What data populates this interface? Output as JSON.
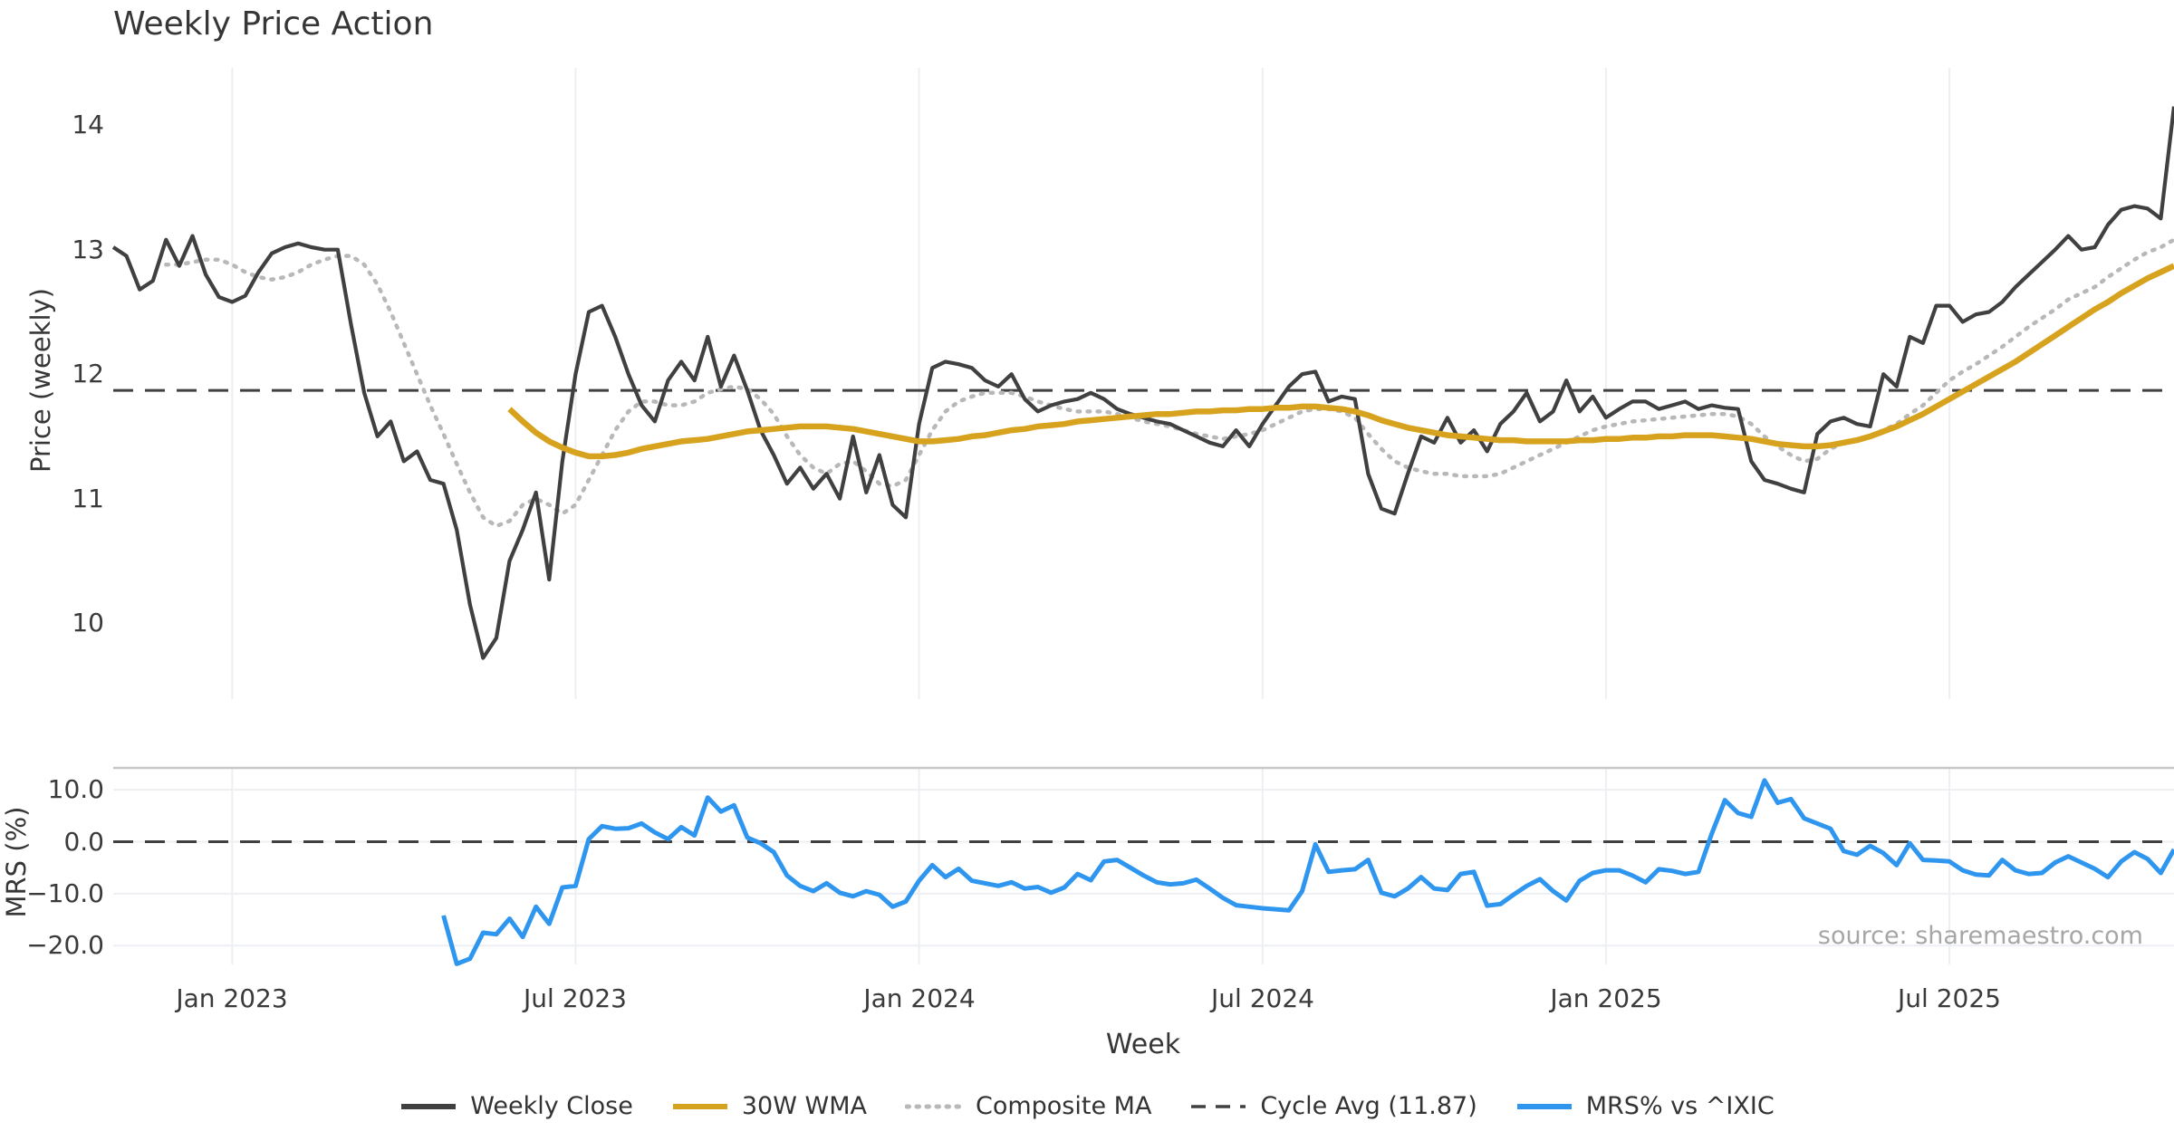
{
  "title": "Weekly Price Action",
  "source_note": "source: sharemaestro.com",
  "axes": {
    "price_axis_title": "Price (weekly)",
    "mrs_axis_title": "MRS (%)",
    "x_axis_title": "Week"
  },
  "colors": {
    "weekly_close": "#404040",
    "wma_30w": "#d7a31e",
    "composite_ma": "#b8b8b8",
    "cycle_avg": "#404040",
    "mrs_blue": "#2f96f0",
    "grid": "#edeff3",
    "text": "#3a3a3a",
    "source_text": "#a6a6a6"
  },
  "legend": {
    "items": [
      {
        "label": "Weekly Close",
        "color": "#404040",
        "style": "solid"
      },
      {
        "label": "30W WMA",
        "color": "#d7a31e",
        "style": "solid"
      },
      {
        "label": "Composite MA",
        "color": "#b8b8b8",
        "style": "dotted"
      },
      {
        "label": "Cycle Avg (11.87)",
        "color": "#404040",
        "style": "dashed"
      },
      {
        "label": "MRS% vs ^IXIC",
        "color": "#2f96f0",
        "style": "solid"
      }
    ]
  },
  "chart_data": [
    {
      "type": "line",
      "panel": "price",
      "title": "Weekly Price Action",
      "xlabel": "Week",
      "ylabel": "Price (weekly)",
      "x_unit": "weekly index, week 0 = early Nov 2022, week 156 = early Nov 2025",
      "n_points": 157,
      "ylim": [
        9.39,
        14.46
      ],
      "grid": "vertical-only",
      "x_ticks": [
        {
          "index": 9,
          "label": "Jan 2023"
        },
        {
          "index": 35,
          "label": "Jul 2023"
        },
        {
          "index": 61,
          "label": "Jan 2024"
        },
        {
          "index": 87,
          "label": "Jul 2024"
        },
        {
          "index": 113,
          "label": "Jan 2025"
        },
        {
          "index": 139,
          "label": "Jul 2025"
        }
      ],
      "y_ticks": [
        {
          "value": 10,
          "label": "10"
        },
        {
          "value": 11,
          "label": "11"
        },
        {
          "value": 12,
          "label": "12"
        },
        {
          "value": 13,
          "label": "13"
        },
        {
          "value": 14,
          "label": "14"
        }
      ],
      "series": [
        {
          "name": "Weekly Close",
          "color": "#404040",
          "style": "solid",
          "start_index": 0,
          "values": [
            13.02,
            12.95,
            12.68,
            12.75,
            13.08,
            12.87,
            13.11,
            12.8,
            12.62,
            12.58,
            12.63,
            12.82,
            12.97,
            13.02,
            13.05,
            13.02,
            13.0,
            13.0,
            12.4,
            11.85,
            11.5,
            11.62,
            11.3,
            11.38,
            11.15,
            11.12,
            10.75,
            10.15,
            9.72,
            9.88,
            10.5,
            10.75,
            11.05,
            10.35,
            11.3,
            12.0,
            12.5,
            12.55,
            12.3,
            12.0,
            11.75,
            11.62,
            11.95,
            12.1,
            11.95,
            12.3,
            11.9,
            12.15,
            11.87,
            11.55,
            11.35,
            11.12,
            11.25,
            11.08,
            11.2,
            11.0,
            11.5,
            11.05,
            11.35,
            10.95,
            10.85,
            11.6,
            12.05,
            12.1,
            12.08,
            12.05,
            11.95,
            11.9,
            12.0,
            11.8,
            11.7,
            11.75,
            11.78,
            11.8,
            11.85,
            11.8,
            11.72,
            11.68,
            11.65,
            11.62,
            11.6,
            11.55,
            11.5,
            11.45,
            11.42,
            11.55,
            11.42,
            11.6,
            11.75,
            11.9,
            12.0,
            12.02,
            11.78,
            11.82,
            11.8,
            11.2,
            10.92,
            10.88,
            11.2,
            11.5,
            11.45,
            11.65,
            11.45,
            11.55,
            11.38,
            11.6,
            11.7,
            11.85,
            11.62,
            11.7,
            11.95,
            11.7,
            11.82,
            11.65,
            11.72,
            11.78,
            11.78,
            11.72,
            11.75,
            11.78,
            11.72,
            11.75,
            11.73,
            11.72,
            11.3,
            11.15,
            11.12,
            11.08,
            11.05,
            11.52,
            11.62,
            11.65,
            11.6,
            11.58,
            12.0,
            11.9,
            12.3,
            12.25,
            12.55,
            12.55,
            12.42,
            12.48,
            12.5,
            12.58,
            12.7,
            12.8,
            12.9,
            13.0,
            13.11,
            13.0,
            13.02,
            13.2,
            13.32,
            13.35,
            13.33,
            13.25,
            14.15
          ]
        },
        {
          "name": "30W WMA",
          "color": "#d7a31e",
          "style": "solid",
          "start_index": 30,
          "values": [
            11.72,
            11.62,
            11.53,
            11.46,
            11.41,
            11.37,
            11.34,
            11.34,
            11.35,
            11.37,
            11.4,
            11.42,
            11.44,
            11.46,
            11.47,
            11.48,
            11.5,
            11.52,
            11.54,
            11.55,
            11.56,
            11.57,
            11.58,
            11.58,
            11.58,
            11.57,
            11.56,
            11.54,
            11.52,
            11.5,
            11.48,
            11.46,
            11.46,
            11.47,
            11.48,
            11.5,
            11.51,
            11.53,
            11.55,
            11.56,
            11.58,
            11.59,
            11.6,
            11.62,
            11.63,
            11.64,
            11.65,
            11.66,
            11.67,
            11.68,
            11.68,
            11.69,
            11.7,
            11.7,
            11.71,
            11.71,
            11.72,
            11.72,
            11.73,
            11.73,
            11.74,
            11.74,
            11.73,
            11.72,
            11.7,
            11.67,
            11.63,
            11.6,
            11.57,
            11.55,
            11.53,
            11.51,
            11.5,
            11.49,
            11.48,
            11.47,
            11.47,
            11.46,
            11.46,
            11.46,
            11.46,
            11.47,
            11.47,
            11.48,
            11.48,
            11.49,
            11.49,
            11.5,
            11.5,
            11.51,
            11.51,
            11.51,
            11.5,
            11.49,
            11.48,
            11.46,
            11.44,
            11.43,
            11.42,
            11.42,
            11.43,
            11.45,
            11.47,
            11.5,
            11.54,
            11.58,
            11.63,
            11.68,
            11.74,
            11.8,
            11.86,
            11.92,
            11.98,
            12.04,
            12.1,
            12.17,
            12.24,
            12.31,
            12.38,
            12.45,
            12.52,
            12.58,
            12.65,
            12.71,
            12.77,
            12.82,
            12.87
          ]
        },
        {
          "name": "Composite MA",
          "color": "#b8b8b8",
          "style": "dotted",
          "start_index": 4,
          "values": [
            12.88,
            12.88,
            12.9,
            12.92,
            12.92,
            12.88,
            12.82,
            12.78,
            12.76,
            12.78,
            12.82,
            12.88,
            12.92,
            12.95,
            12.95,
            12.88,
            12.72,
            12.5,
            12.25,
            12.0,
            11.75,
            11.52,
            11.28,
            11.05,
            10.85,
            10.78,
            10.82,
            10.95,
            11.0,
            10.95,
            10.88,
            10.95,
            11.15,
            11.35,
            11.55,
            11.7,
            11.78,
            11.78,
            11.75,
            11.75,
            11.78,
            11.85,
            11.88,
            11.9,
            11.88,
            11.8,
            11.68,
            11.5,
            11.35,
            11.25,
            11.2,
            11.28,
            11.3,
            11.22,
            11.12,
            11.1,
            11.15,
            11.35,
            11.55,
            11.7,
            11.78,
            11.82,
            11.85,
            11.85,
            11.85,
            11.82,
            11.78,
            11.75,
            11.72,
            11.7,
            11.7,
            11.7,
            11.68,
            11.65,
            11.62,
            11.6,
            11.58,
            11.55,
            11.52,
            11.5,
            11.48,
            11.5,
            11.52,
            11.55,
            11.6,
            11.65,
            11.7,
            11.72,
            11.72,
            11.7,
            11.65,
            11.52,
            11.4,
            11.3,
            11.25,
            11.22,
            11.2,
            11.2,
            11.18,
            11.18,
            11.18,
            11.2,
            11.25,
            11.3,
            11.35,
            11.4,
            11.45,
            11.5,
            11.55,
            11.58,
            11.6,
            11.62,
            11.63,
            11.64,
            11.65,
            11.66,
            11.67,
            11.68,
            11.68,
            11.66,
            11.6,
            11.5,
            11.42,
            11.35,
            11.3,
            11.32,
            11.4,
            11.45,
            11.48,
            11.5,
            11.55,
            11.6,
            11.68,
            11.75,
            11.85,
            11.95,
            12.02,
            12.08,
            12.15,
            12.22,
            12.3,
            12.38,
            12.45,
            12.52,
            12.6,
            12.65,
            12.7,
            12.78,
            12.85,
            12.92,
            12.98,
            13.02,
            13.08
          ]
        },
        {
          "name": "Cycle Avg (11.87)",
          "color": "#404040",
          "style": "dashed",
          "value": 11.87
        }
      ]
    },
    {
      "type": "line",
      "panel": "mrs",
      "xlabel": "Week",
      "ylabel": "MRS (%)",
      "ylim": [
        -23.6,
        14.2
      ],
      "zero_line_value": 0,
      "grid": "both",
      "y_ticks": [
        {
          "value": 10,
          "label": "10.0"
        },
        {
          "value": 0,
          "label": "0.0"
        },
        {
          "value": -10,
          "label": "−10.0"
        },
        {
          "value": -20,
          "label": "−20.0"
        }
      ],
      "series": [
        {
          "name": "MRS% vs ^IXIC",
          "color": "#2f96f0",
          "style": "solid",
          "start_index": 25,
          "values": [
            -14.2,
            -23.5,
            -22.5,
            -17.5,
            -17.8,
            -14.8,
            -18.3,
            -12.5,
            -15.8,
            -8.8,
            -8.5,
            0.5,
            3.0,
            2.5,
            2.6,
            3.5,
            1.8,
            0.5,
            2.8,
            1.2,
            8.5,
            5.8,
            7.0,
            0.8,
            -0.3,
            -2.0,
            -6.5,
            -8.5,
            -9.5,
            -8.0,
            -9.8,
            -10.5,
            -9.5,
            -10.2,
            -12.5,
            -11.5,
            -7.5,
            -4.5,
            -6.8,
            -5.2,
            -7.5,
            -8.0,
            -8.5,
            -7.8,
            -9.0,
            -8.7,
            -9.8,
            -8.8,
            -6.2,
            -7.4,
            -3.8,
            -3.5,
            -5.0,
            -6.5,
            -7.8,
            -8.2,
            -8.0,
            -7.3,
            -9.0,
            -10.8,
            -12.2,
            -12.5,
            -12.8,
            -13.0,
            -13.2,
            -9.5,
            -0.5,
            -5.8,
            -5.5,
            -5.3,
            -3.5,
            -9.8,
            -10.5,
            -9.0,
            -6.8,
            -9.0,
            -9.3,
            -6.2,
            -5.8,
            -12.3,
            -12.0,
            -10.2,
            -8.5,
            -7.2,
            -9.5,
            -11.3,
            -7.5,
            -6.0,
            -5.5,
            -5.5,
            -6.5,
            -7.8,
            -5.3,
            -5.6,
            -6.2,
            -5.8,
            1.5,
            8.0,
            5.5,
            4.8,
            11.8,
            7.5,
            8.2,
            4.5,
            3.5,
            2.5,
            -1.8,
            -2.5,
            -0.8,
            -2.2,
            -4.5,
            -0.3,
            -3.5,
            -3.6,
            -3.8,
            -5.5,
            -6.3,
            -6.5,
            -3.5,
            -5.5,
            -6.2,
            -6.0,
            -4.0,
            -2.8,
            -4.0,
            -5.2,
            -6.8,
            -3.8,
            -2.0,
            -3.3,
            -6.0,
            -1.5
          ]
        }
      ]
    }
  ]
}
